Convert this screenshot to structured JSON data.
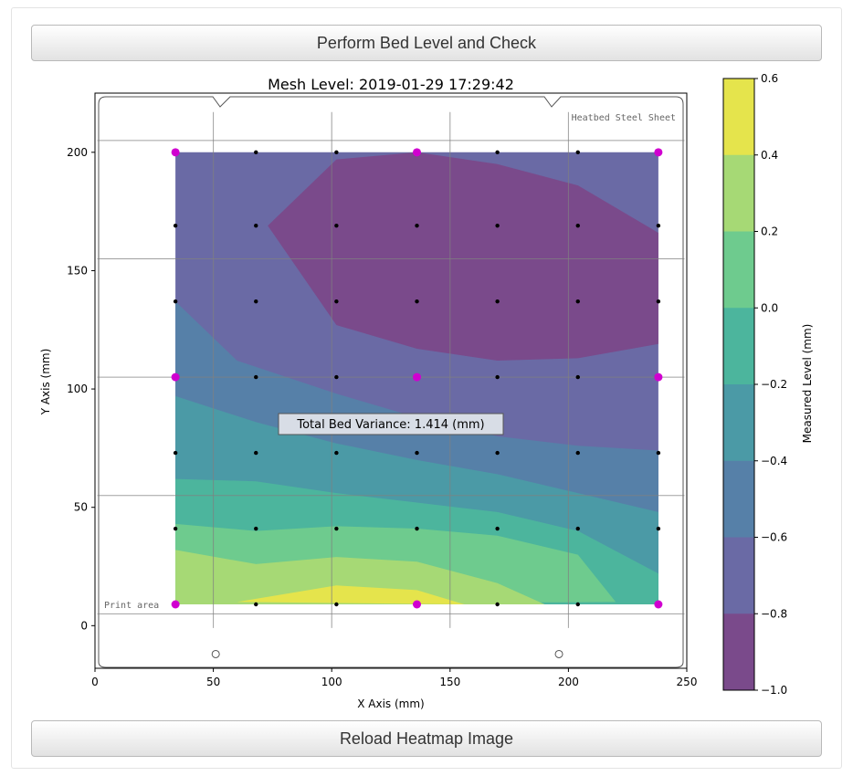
{
  "buttons": {
    "top_label": "Perform Bed Level and Check",
    "bottom_label": "Reload Heatmap Image"
  },
  "heatbed": {
    "sheet_label": "Heatbed Steel Sheet",
    "print_area_label": "Print area"
  },
  "annotation": "Total Bed Variance: 1.414 (mm)",
  "colorbar": {
    "label": "Measured Level (mm)",
    "ticks": [
      "0.6",
      "0.4",
      "0.2",
      "0.0",
      "−0.2",
      "−0.4",
      "−0.6",
      "−0.8",
      "−1.0"
    ],
    "levels": [
      0.6,
      0.4,
      0.2,
      0.0,
      -0.2,
      -0.4,
      -0.6,
      -0.8,
      -1.0
    ],
    "colors": [
      "#e5e44c",
      "#a6d975",
      "#6ecb8e",
      "#4cb59d",
      "#4b9aa6",
      "#5680a8",
      "#6a6aa5",
      "#7a4a8b"
    ]
  },
  "chart_data": {
    "type": "heatmap",
    "title": "Mesh Level: 2019-01-29 17:29:42",
    "xlabel": "X Axis (mm)",
    "ylabel": "Y Axis (mm)",
    "xlim": [
      0,
      250
    ],
    "ylim": [
      -18,
      225
    ],
    "x_ticks": [
      0,
      50,
      100,
      150,
      200,
      250
    ],
    "y_ticks": [
      0,
      50,
      100,
      150,
      200
    ],
    "grid_x": [
      0,
      50,
      100,
      150,
      200,
      250
    ],
    "grid_y": [
      5,
      55,
      105,
      155,
      205
    ],
    "mesh_x": [
      34,
      68,
      102,
      136,
      170,
      204,
      238
    ],
    "mesh_y": [
      9,
      41,
      73,
      105,
      137,
      169,
      200
    ],
    "calibration_points": [
      [
        34,
        9
      ],
      [
        136,
        9
      ],
      [
        238,
        9
      ],
      [
        34,
        105
      ],
      [
        136,
        105
      ],
      [
        238,
        105
      ],
      [
        34,
        200
      ],
      [
        136,
        200
      ],
      [
        238,
        200
      ]
    ],
    "holes": [
      [
        51,
        -12
      ],
      [
        196,
        -12
      ]
    ],
    "contour_bands": [
      {
        "color": "#6a6aa5",
        "polygon": [
          [
            34,
            200
          ],
          [
            238,
            200
          ],
          [
            238,
            9
          ],
          [
            34,
            9
          ]
        ]
      },
      {
        "color": "#5680a8",
        "polygon": [
          [
            34,
            137
          ],
          [
            60,
            112
          ],
          [
            102,
            98
          ],
          [
            136,
            88
          ],
          [
            170,
            80
          ],
          [
            204,
            76
          ],
          [
            238,
            74
          ],
          [
            238,
            9
          ],
          [
            34,
            9
          ]
        ]
      },
      {
        "color": "#4b9aa6",
        "polygon": [
          [
            34,
            97
          ],
          [
            68,
            86
          ],
          [
            102,
            77
          ],
          [
            136,
            70
          ],
          [
            170,
            64
          ],
          [
            204,
            56
          ],
          [
            238,
            48
          ],
          [
            238,
            9
          ],
          [
            34,
            9
          ]
        ]
      },
      {
        "color": "#4cb59d",
        "polygon": [
          [
            34,
            62
          ],
          [
            68,
            61
          ],
          [
            102,
            56
          ],
          [
            136,
            52
          ],
          [
            170,
            48
          ],
          [
            204,
            40
          ],
          [
            238,
            22
          ],
          [
            238,
            9
          ],
          [
            34,
            9
          ]
        ]
      },
      {
        "color": "#6ecb8e",
        "polygon": [
          [
            34,
            43
          ],
          [
            68,
            40
          ],
          [
            102,
            42
          ],
          [
            136,
            41
          ],
          [
            170,
            38
          ],
          [
            204,
            30
          ],
          [
            220,
            10
          ],
          [
            34,
            9
          ]
        ]
      },
      {
        "color": "#a6d975",
        "polygon": [
          [
            34,
            32
          ],
          [
            68,
            26
          ],
          [
            102,
            29
          ],
          [
            136,
            27
          ],
          [
            170,
            18
          ],
          [
            190,
            9
          ],
          [
            34,
            9
          ]
        ]
      },
      {
        "color": "#e5e44c",
        "polygon": [
          [
            60,
            10
          ],
          [
            102,
            17
          ],
          [
            136,
            15
          ],
          [
            156,
            9
          ]
        ]
      },
      {
        "color": "#7a4a8b",
        "polygon": [
          [
            73,
            169
          ],
          [
            102,
            197
          ],
          [
            136,
            200
          ],
          [
            170,
            195
          ],
          [
            204,
            186
          ],
          [
            238,
            166
          ],
          [
            238,
            119
          ],
          [
            204,
            113
          ],
          [
            170,
            112
          ],
          [
            136,
            117
          ],
          [
            102,
            127
          ]
        ]
      }
    ],
    "colorbar_range": [
      -1.0,
      0.6
    ]
  }
}
